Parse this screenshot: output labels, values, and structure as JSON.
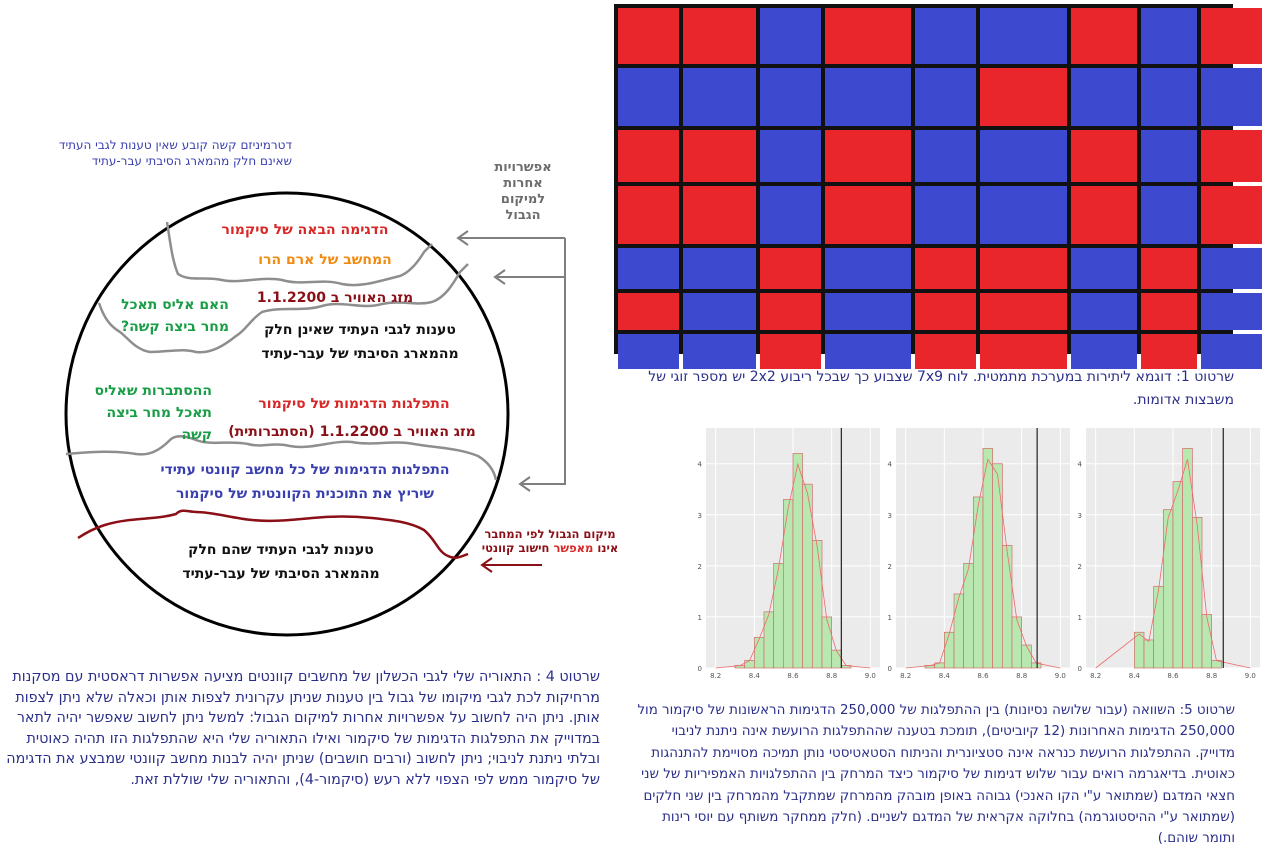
{
  "colors": {
    "red": "#e8262b",
    "blue": "#3d49cf",
    "grid_line": "#111111",
    "hist_fill": "#b8e8b0",
    "hist_edge": "#d46b6b",
    "density": "#ee6a6a"
  },
  "board": {
    "rows": [
      [
        "R",
        "R",
        "B",
        "R",
        "B",
        "B",
        "R",
        "B",
        "R"
      ],
      [
        "B",
        "B",
        "B",
        "B",
        "B",
        "R",
        "B",
        "B",
        "B"
      ],
      [
        "R",
        "R",
        "B",
        "R",
        "B",
        "B",
        "R",
        "B",
        "R"
      ],
      [
        "R",
        "R",
        "B",
        "R",
        "B",
        "B",
        "R",
        "B",
        "R"
      ],
      [
        "B",
        "B",
        "R",
        "B",
        "R",
        "R",
        "B",
        "R",
        "B"
      ],
      [
        "R",
        "B",
        "R",
        "B",
        "R",
        "R",
        "B",
        "R",
        "B"
      ],
      [
        "B",
        "B",
        "R",
        "B",
        "R",
        "R",
        "B",
        "R",
        "B"
      ]
    ]
  },
  "caption1": "שרטוט 1: דוגמא ליתירות במערכת מתמטית. לוח 7x9 שצבוע כך שבכל ריבוע 2x2 יש מספר זוגי של משבצות אדומות.",
  "caption4": "שרטוט 4 : התאוריה שלי לגבי הכשלון של מחשבים קוונטים מציעה  אפשרות דראסטית עם מסקנות מרחיקות לכת לגבי מיקומו של גבול בין טענות שניתן עקרונית לצפות אותן וכאלה שלא ניתן לצפות אותן.  ניתן היה לחשוב על אפשרויות אחרות למיקום הגבול: למשל ניתן לחשוב שאפשר יהיה לתאר במדוייק את התפלגות הדגימות של סיקמור ואילו התאוריה שלי היא שהתפלגות הזו תהיה כאוטית ובלתי ניתנת לניבוי;  ניתן לחשוב (ורבים חושבים) שניתן יהיה לבנות מחשב קוונטי שמבצע את הדגימה של סיקמור ממש לפי הצפוי ללא רעש (סיקמור-4), והתאוריה שלי  שוללת זאת.",
  "caption5": "שרטוט 5: השוואה (עבור שלושה נסיונות) בין ההתפלגות של 250,000 הדגימות הראשונות של סיקמור מול 250,000 הדגימות האחרונות (12 קיוביטים), תומכת בטענה שההתפלגות הרועשת אינה ניתנת לניבוי מדוייק. ההתפלגות הרועשת כנראה אינה סטציונרית והניתוח הסטאטיסטי נותן תמיכה מסויימת להתנהגות כאוטית.  בדיאגרמה רואים עבור שלוש דגימות של סיקמור כיצד המרחק בין ההתפלגויות האמפיריות של שני חצאי המדגם (שמתואר ע\"י הקו האנכי)  גבוהה באופן מובהק מהמרחק שמתקבל מהמרחק בין שני חלקים (שמתואר ע\"י ההיסטוגרמה)  בחלוקה אקראית של המדגם לשניים. (חלק ממחקר משותף עם יוסי רינות ותומר שוהם.)",
  "diagram": {
    "top_note_line1": "דטרמיניזם קשה קובע שאין טענות לגבי העתיד",
    "top_note_line2": "שאינם חלק מהמארג הסיבתי עבר-עתיד",
    "other_options": [
      "אפשרויות",
      "אחרות",
      "למיקום",
      "הגבול"
    ],
    "author_line1": "מיקום הגבול לפי המחבר",
    "author_line2_pre": "אינו ",
    "author_line2_strong": "מאפשר",
    "author_line2_post": " חישוב קוונטי",
    "next_sample": "הדגימה הבאה של סיקמור",
    "aram": "המחשב של ארם הרו",
    "weather1": "מזג האוויר ב 1.1.2200",
    "alice_q1": "האם אליס תאכל",
    "alice_q2": "מחר ביצה קשה?",
    "claims_not1": "טענות לגבי העתיד שאינן חלק",
    "claims_not2": "מהמארג הסיבתי של עבר-עתיד",
    "prob1": "ההסתברות שאליס",
    "prob2": "תאכל מחר ביצה",
    "prob3": "קשה",
    "dist_samples": "התפלגות הדגימות של סיקמור",
    "weather_prob": "מזג האוויר ב 1.1.2200 (הסתברותית)",
    "quantum1": "התפלגות הדגימות של כל מחשב קוונטי עתידי",
    "quantum2": "שיריץ את התוכנית הקוונטית של סיקמור",
    "claims_are1": "טענות לגבי העתיד שהם חלק",
    "claims_are2": "מהמארג הסיבתי של עבר-עתיד"
  },
  "chart_data": [
    {
      "type": "bar",
      "x_ticks": [
        "8.2",
        "8.4",
        "8.6",
        "8.8",
        "9.0"
      ],
      "y_ticks": [
        "0",
        "1",
        "2",
        "3",
        "4"
      ],
      "bins": [
        8.3,
        8.35,
        8.4,
        8.45,
        8.5,
        8.55,
        8.6,
        8.65,
        8.7,
        8.75,
        8.8,
        8.85
      ],
      "values": [
        0.05,
        0.15,
        0.6,
        1.1,
        2.05,
        3.3,
        4.2,
        3.6,
        2.5,
        1.0,
        0.35,
        0.05
      ],
      "vline": 8.85,
      "xlim": [
        8.15,
        9.05
      ],
      "ylim": [
        0,
        4.7
      ]
    },
    {
      "type": "bar",
      "x_ticks": [
        "8.2",
        "8.4",
        "8.6",
        "8.8",
        "9.0"
      ],
      "y_ticks": [
        "0",
        "1",
        "2",
        "3",
        "4"
      ],
      "bins": [
        8.3,
        8.35,
        8.4,
        8.45,
        8.5,
        8.55,
        8.6,
        8.65,
        8.7,
        8.75,
        8.8,
        8.85
      ],
      "values": [
        0.05,
        0.1,
        0.7,
        1.45,
        2.05,
        3.35,
        4.3,
        4.0,
        2.4,
        1.0,
        0.45,
        0.1
      ],
      "vline": 8.88,
      "xlim": [
        8.15,
        9.05
      ],
      "ylim": [
        0,
        4.7
      ]
    },
    {
      "type": "bar",
      "x_ticks": [
        "8.2",
        "8.4",
        "8.6",
        "8.8",
        "9.0"
      ],
      "y_ticks": [
        "0",
        "1",
        "2",
        "3",
        "4"
      ],
      "bins": [
        8.4,
        8.45,
        8.5,
        8.55,
        8.6,
        8.65,
        8.7,
        8.75,
        8.8
      ],
      "values": [
        0.7,
        0.55,
        1.6,
        3.1,
        3.65,
        4.3,
        2.95,
        1.05,
        0.15
      ],
      "vline": 8.86,
      "xlim": [
        8.15,
        9.05
      ],
      "ylim": [
        0,
        4.7
      ]
    }
  ]
}
